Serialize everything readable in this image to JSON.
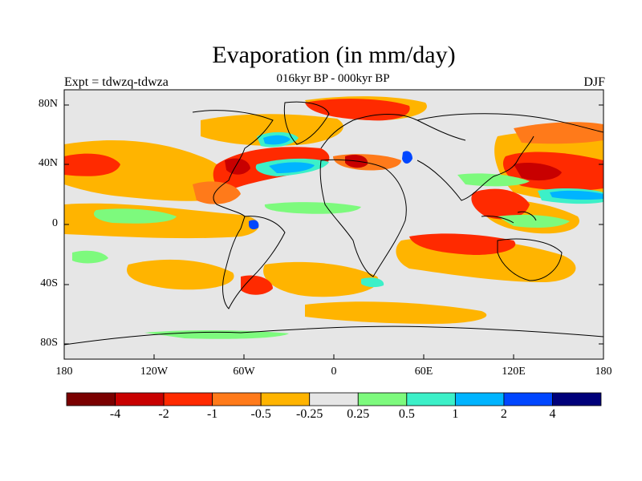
{
  "title": "Evaporation (in mm/day)",
  "subtitle": "016kyr BP - 000kyr BP",
  "left_label": "Expt = tdwzq-tdwza",
  "right_label": "DJF",
  "lat_ticks": [
    "80N",
    "40N",
    "0",
    "40S",
    "80S"
  ],
  "lon_ticks": [
    "180",
    "120W",
    "60W",
    "0",
    "60E",
    "120E",
    "180"
  ],
  "colorbar": {
    "colors": [
      "#7a0000",
      "#c80000",
      "#ff2a00",
      "#ff7a1a",
      "#ffb400",
      "#e6e6e6",
      "#7dfa7d",
      "#3cf0c8",
      "#00b4ff",
      "#0046ff",
      "#00007a"
    ],
    "labels": [
      "-4",
      "-2",
      "-1",
      "-0.5",
      "-0.25",
      "0.25",
      "0.5",
      "1",
      "2",
      "4"
    ]
  }
}
